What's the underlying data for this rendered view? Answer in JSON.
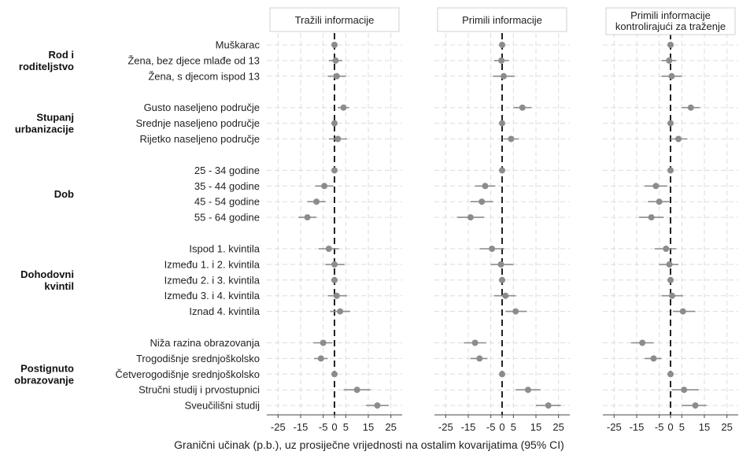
{
  "chart_data": {
    "type": "scatter",
    "xlabel": "Granični učinak (p.b.), uz prosiječne vrijednosti na ostalim kovarijatima (95% CI)",
    "xlim": [
      -30,
      30
    ],
    "xticks": [
      -25,
      -15,
      -5,
      5,
      15,
      25
    ],
    "xtick_labels": [
      "-25",
      "-15",
      "-5",
      "0",
      "5",
      "15",
      "25"
    ],
    "xtick_values": [
      -25,
      -15,
      -5,
      0,
      5,
      15,
      25
    ],
    "panels": [
      {
        "title_lines": [
          "Tražili informacije"
        ]
      },
      {
        "title_lines": [
          "Primili informacije"
        ]
      },
      {
        "title_lines": [
          "Primili informacije",
          "kontrolirajući za traženje"
        ]
      }
    ],
    "groups": [
      {
        "label_lines": [
          "Rod i",
          "roditeljstvo"
        ],
        "rows": [
          0,
          2
        ]
      },
      {
        "label_lines": [
          "Stupanj",
          "urbanizacije"
        ],
        "rows": [
          3,
          5
        ]
      },
      {
        "label_lines": [
          "Dob"
        ],
        "rows": [
          6,
          9
        ]
      },
      {
        "label_lines": [
          "Dohodovni",
          "kvintil"
        ],
        "rows": [
          10,
          14
        ]
      },
      {
        "label_lines": [
          "Postignuto",
          "obrazovanje"
        ],
        "rows": [
          15,
          19
        ]
      }
    ],
    "rows": [
      {
        "label": "Muškarac",
        "values": [
          [
            0,
            0,
            0
          ],
          [
            0,
            0,
            0
          ],
          [
            0,
            0,
            0
          ]
        ]
      },
      {
        "label": "Žena, bez djece mlađe od 13",
        "values": [
          [
            0.5,
            -2.5,
            3.5
          ],
          [
            -0.3,
            -3.5,
            3
          ],
          [
            -0.6,
            -4,
            2.5
          ]
        ]
      },
      {
        "label": "Žena, s djecom ispod 13",
        "values": [
          [
            1,
            -3,
            5
          ],
          [
            0.7,
            -4,
            5.5
          ],
          [
            0.5,
            -4,
            5
          ]
        ]
      },
      {
        "label": "Gusto naseljeno područje",
        "values": [
          [
            4,
            1.5,
            6.5
          ],
          [
            9,
            5,
            13
          ],
          [
            9,
            5,
            13
          ]
        ]
      },
      {
        "label": "Srednje naseljeno područje",
        "values": [
          [
            0,
            0,
            0
          ],
          [
            0,
            0,
            0
          ],
          [
            0,
            0,
            0
          ]
        ]
      },
      {
        "label": "Rijetko naseljeno područje",
        "values": [
          [
            1.5,
            -2.5,
            5.5
          ],
          [
            4,
            0.5,
            7.5
          ],
          [
            3.5,
            0,
            7.5
          ]
        ]
      },
      {
        "label": "25 - 34 godine",
        "values": [
          [
            0,
            0,
            0
          ],
          [
            0,
            0,
            0
          ],
          [
            0,
            0,
            0
          ]
        ]
      },
      {
        "label": "35 - 44 godine",
        "values": [
          [
            -4.5,
            -8.5,
            -0.5
          ],
          [
            -7.5,
            -12,
            -3
          ],
          [
            -6.5,
            -11.5,
            -1.5
          ]
        ]
      },
      {
        "label": "45 - 54 godine",
        "values": [
          [
            -8,
            -12,
            -4
          ],
          [
            -9,
            -14,
            -4
          ],
          [
            -5,
            -10,
            -0.5
          ]
        ]
      },
      {
        "label": "55 - 64 godine",
        "values": [
          [
            -12,
            -16,
            -8
          ],
          [
            -14,
            -20,
            -8
          ],
          [
            -8.5,
            -14,
            -3
          ]
        ]
      },
      {
        "label": "Ispod 1. kvintila",
        "values": [
          [
            -2.5,
            -7,
            2
          ],
          [
            -4.5,
            -10,
            1
          ],
          [
            -2,
            -7,
            2.5
          ]
        ]
      },
      {
        "label": "Između 1. i 2. kvintila",
        "values": [
          [
            0,
            -4,
            4.5
          ],
          [
            -0.5,
            -5,
            5
          ],
          [
            -0.5,
            -5,
            3.5
          ]
        ]
      },
      {
        "label": "Između 2. i 3. kvintila",
        "values": [
          [
            0,
            0,
            0
          ],
          [
            0,
            0,
            0
          ],
          [
            0,
            0,
            0
          ]
        ]
      },
      {
        "label": "Između 3. i 4. kvintila",
        "values": [
          [
            1,
            -3,
            5.5
          ],
          [
            1.5,
            -3.5,
            6
          ],
          [
            0.7,
            -4,
            5.5
          ]
        ]
      },
      {
        "label": "Iznad 4. kvintila",
        "values": [
          [
            2.5,
            -2,
            7
          ],
          [
            6,
            1.5,
            11
          ],
          [
            5.5,
            1,
            11
          ]
        ]
      },
      {
        "label": "Niža razina obrazovanja",
        "values": [
          [
            -5,
            -9.5,
            -1
          ],
          [
            -12,
            -17,
            -7
          ],
          [
            -12.5,
            -17.5,
            -7.5
          ]
        ]
      },
      {
        "label": "Trogodišnje srednjoškolsko",
        "values": [
          [
            -6,
            -9,
            -3
          ],
          [
            -10,
            -14,
            -6.5
          ],
          [
            -7.5,
            -11.5,
            -4
          ]
        ]
      },
      {
        "label": "Četverogodišnje srednjoškolsko",
        "values": [
          [
            0,
            0,
            0
          ],
          [
            0,
            0,
            0
          ],
          [
            0,
            0,
            0
          ]
        ]
      },
      {
        "label": "Stručni studij i prvostupnici",
        "values": [
          [
            10,
            4,
            16
          ],
          [
            11.5,
            6,
            17
          ],
          [
            6,
            0.5,
            12.5
          ]
        ]
      },
      {
        "label": "Sveučilišni studij",
        "values": [
          [
            19,
            14,
            24
          ],
          [
            20.5,
            15,
            26
          ],
          [
            11,
            5,
            16
          ]
        ]
      }
    ]
  }
}
